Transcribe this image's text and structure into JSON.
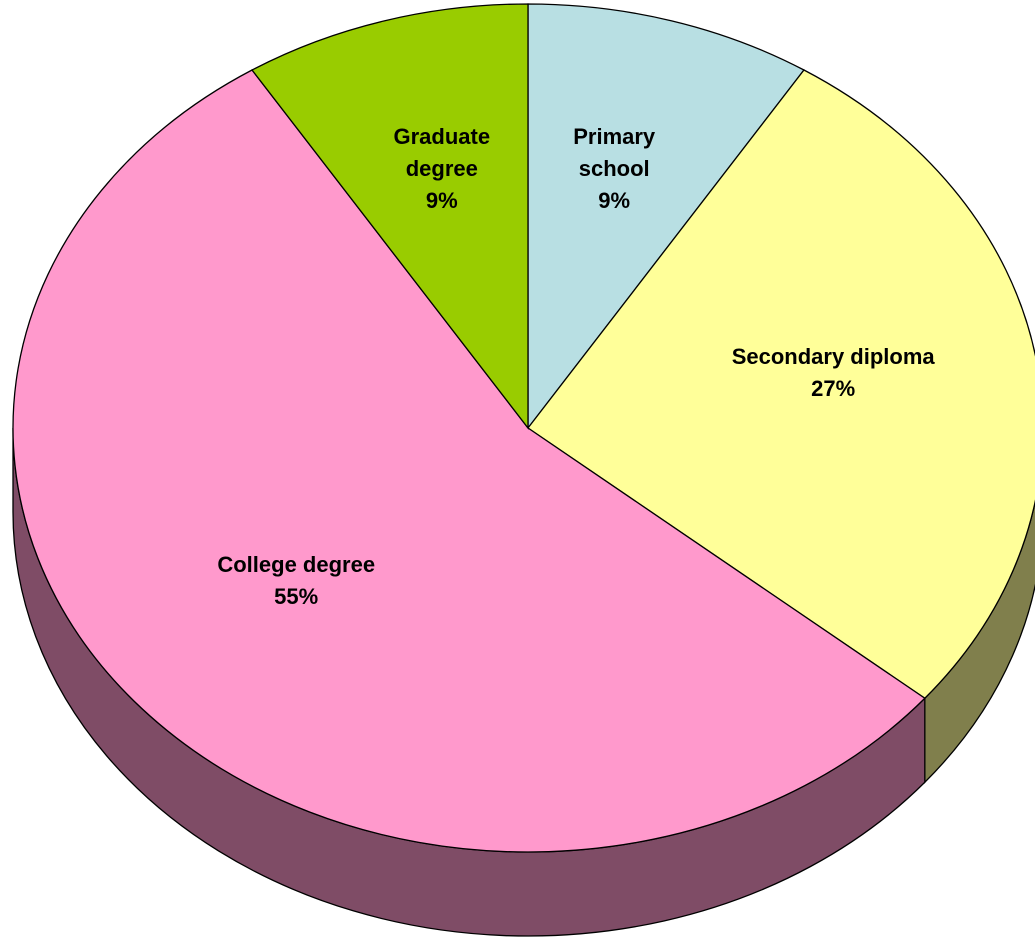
{
  "chart_data": {
    "type": "pie",
    "categories": [
      "Primary school",
      "Secondary diploma",
      "College degree",
      "Graduate degree"
    ],
    "values": [
      9,
      27,
      55,
      9
    ],
    "value_labels": [
      "9%",
      "27%",
      "55%",
      "9%"
    ],
    "colors": [
      "#b8dfe3",
      "#ffff99",
      "#ff99cc",
      "#99cc00"
    ],
    "side_colors": [
      "#5c7072",
      "#807f4c",
      "#7f4c66",
      "#4c6600"
    ]
  }
}
